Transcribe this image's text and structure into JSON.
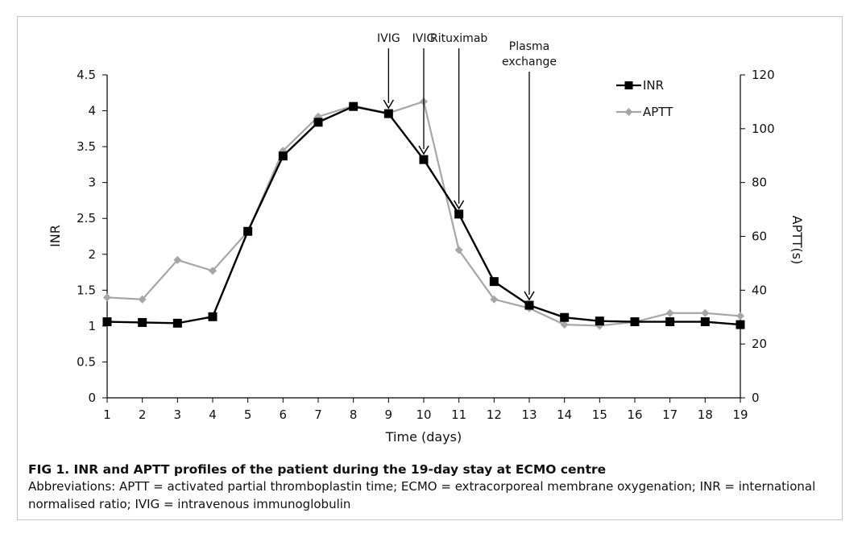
{
  "chart_data": {
    "type": "line",
    "xlabel": "Time (days)",
    "ylabel_left": "INR",
    "ylabel_right": "APTT(s)",
    "x": [
      1,
      2,
      3,
      4,
      5,
      6,
      7,
      8,
      9,
      10,
      11,
      12,
      13,
      14,
      15,
      16,
      17,
      18,
      19
    ],
    "x_tick_labels": [
      "1",
      "2",
      "3",
      "4",
      "5",
      "6",
      "7",
      "8",
      "9",
      "10",
      "11",
      "12",
      "13",
      "14",
      "15",
      "16",
      "17",
      "18",
      "19"
    ],
    "ylim_left": [
      0,
      4.5
    ],
    "y_left_ticks": [
      "0",
      "0.5",
      "1",
      "1.5",
      "2",
      "2.5",
      "3",
      "3.5",
      "4",
      "4.5"
    ],
    "ylim_right": [
      0,
      120
    ],
    "y_right_ticks": [
      "0",
      "20",
      "40",
      "60",
      "80",
      "100",
      "120"
    ],
    "grid": false,
    "legend_position": "top-right",
    "series": [
      {
        "name": "INR",
        "axis": "left",
        "color": "#000000",
        "marker": "square",
        "values": [
          1.06,
          1.05,
          1.04,
          1.13,
          2.32,
          3.37,
          3.84,
          4.06,
          3.96,
          3.32,
          2.56,
          1.62,
          1.29,
          1.12,
          1.07,
          1.06,
          1.06,
          1.06,
          1.02
        ]
      },
      {
        "name": "APTT",
        "axis": "right",
        "color": "#a6a6a6",
        "marker": "diamond",
        "values": [
          37.3,
          36.6,
          51.2,
          47.2,
          61.8,
          91.8,
          104.5,
          108.5,
          105.8,
          110.1,
          54.9,
          36.6,
          33.3,
          27.2,
          26.8,
          28.2,
          31.5,
          31.5,
          30.4
        ]
      }
    ],
    "annotations": [
      {
        "label": [
          "IVIG"
        ],
        "x": 9
      },
      {
        "label": [
          "IVIG"
        ],
        "x": 10
      },
      {
        "label": [
          "Rituximab"
        ],
        "x": 11
      },
      {
        "label": [
          "Plasma",
          "exchange"
        ],
        "x": 13
      }
    ]
  },
  "caption": {
    "title": "FIG 1.  INR and APTT profiles of the patient during the 19-day stay at ECMO centre",
    "text": "Abbreviations: APTT = activated partial thromboplastin time; ECMO = extracorporeal membrane oxygenation; INR = international normalised ratio; IVIG = intravenous immunoglobulin"
  }
}
